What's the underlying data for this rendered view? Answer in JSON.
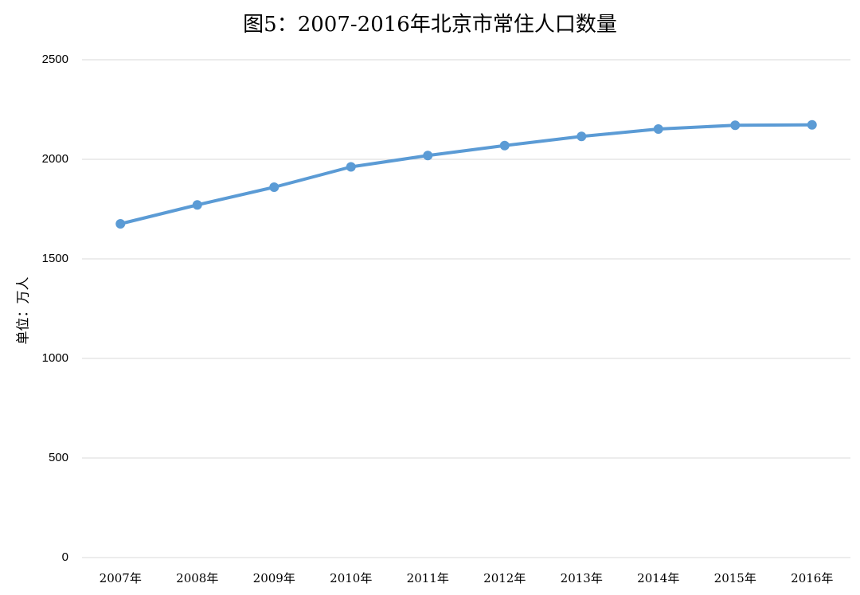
{
  "chart_data": {
    "type": "line",
    "title": "图5：2007-2016年北京市常住人口数量",
    "y_label": "单位：万人",
    "categories": [
      "2007年",
      "2008年",
      "2009年",
      "2010年",
      "2011年",
      "2012年",
      "2013年",
      "2014年",
      "2015年",
      "2016年"
    ],
    "series": [
      {
        "name": "常住人口",
        "color": "#5b9bd5",
        "values": [
          1676,
          1771,
          1860,
          1962,
          2019,
          2069,
          2115,
          2152,
          2171,
          2173
        ]
      }
    ],
    "ylim": [
      0,
      2500
    ],
    "yticks": [
      0,
      500,
      1000,
      1500,
      2000,
      2500
    ],
    "grid": true
  }
}
